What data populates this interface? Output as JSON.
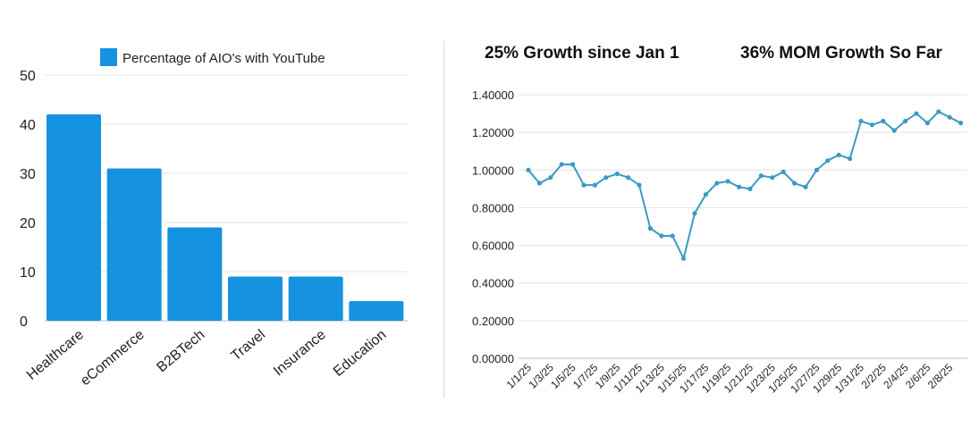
{
  "chart_data": [
    {
      "type": "bar",
      "title": "",
      "legend": "Percentage of AIO's with YouTube",
      "categories": [
        "Healthcare",
        "eCommerce",
        "B2BTech",
        "Travel",
        "Insurance",
        "Education"
      ],
      "values": [
        42,
        31,
        19,
        9,
        9,
        4
      ],
      "ylim": [
        0,
        50
      ],
      "yticks": [
        "0",
        "10",
        "20",
        "30",
        "40",
        "50"
      ],
      "xlabel": "",
      "ylabel": "",
      "color": "#1592e0",
      "grid": true
    },
    {
      "type": "line",
      "headline_left": "25% Growth since Jan 1",
      "headline_right": "36% MOM Growth So Far",
      "ylim": [
        0,
        1.4
      ],
      "yticks": [
        "0.00000",
        "0.20000",
        "0.40000",
        "0.60000",
        "0.80000",
        "1.00000",
        "1.20000",
        "1.40000"
      ],
      "x_tick_labels": [
        "1/1/25",
        "1/3/25",
        "1/5/25",
        "1/7/25",
        "1/9/25",
        "1/11/25",
        "1/13/25",
        "1/15/25",
        "1/17/25",
        "1/19/25",
        "1/21/25",
        "1/23/25",
        "1/25/25",
        "1/27/25",
        "1/29/25",
        "1/31/25",
        "2/2/25",
        "2/4/25",
        "2/6/25",
        "2/8/25"
      ],
      "values": [
        1.0,
        0.93,
        0.96,
        1.03,
        1.03,
        0.92,
        0.92,
        0.96,
        0.98,
        0.96,
        0.92,
        0.69,
        0.65,
        0.65,
        0.53,
        0.77,
        0.87,
        0.93,
        0.94,
        0.91,
        0.9,
        0.97,
        0.96,
        0.99,
        0.93,
        0.91,
        1.0,
        1.05,
        1.08,
        1.06,
        1.26,
        1.24,
        1.26,
        1.21,
        1.26,
        1.3,
        1.25,
        1.31,
        1.28,
        1.25
      ],
      "color": "#3b9ac4",
      "grid": true
    }
  ]
}
